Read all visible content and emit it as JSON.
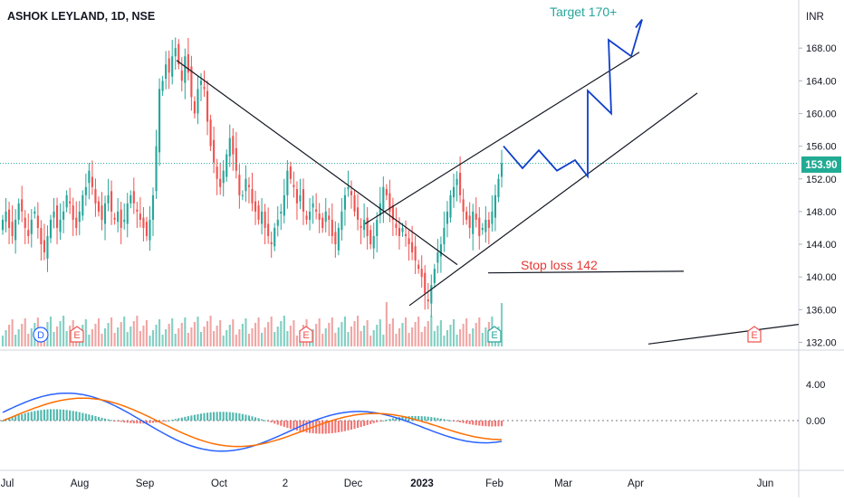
{
  "chart_data": {
    "type": "candlestick",
    "title": "ASHOK LEYLAND, 1D, NSE",
    "currency": "INR",
    "last_price": 153.9,
    "last_price_label": "153.90",
    "price_ylim": [
      131.5,
      173
    ],
    "price_ticks": [
      "168.00",
      "164.00",
      "160.00",
      "156.00",
      "152.00",
      "148.00",
      "144.00",
      "140.00",
      "136.00",
      "132.00"
    ],
    "macd_ylim": [
      -4.5,
      7
    ],
    "macd_ticks": [
      "4.00",
      "0.00"
    ],
    "x_ticks": [
      "Jul",
      "Aug",
      "Sep",
      "Oct",
      "2",
      "Dec",
      "2023",
      "Feb",
      "Mar",
      "Apr",
      "Jun"
    ],
    "annotations": {
      "target": "Target 170+",
      "stop_loss": "Stop loss 142"
    },
    "events": [
      {
        "letter": "D",
        "type": "dividend",
        "date": "Jul"
      },
      {
        "letter": "E",
        "type": "earnings",
        "date": "Aug"
      },
      {
        "letter": "E",
        "type": "earnings",
        "date": "Nov"
      },
      {
        "letter": "E",
        "type": "earnings",
        "date": "Feb"
      },
      {
        "letter": "E",
        "type": "earnings",
        "date": "May"
      }
    ],
    "closes": [
      147,
      148,
      146,
      145,
      147,
      149,
      148,
      146,
      145,
      147,
      148,
      146,
      144,
      143,
      145,
      147,
      148,
      146,
      147,
      148,
      150,
      149,
      147,
      146,
      148,
      150,
      151,
      153,
      151,
      149,
      148,
      147,
      149,
      150,
      148,
      147,
      148,
      146,
      147,
      149,
      150,
      149,
      148,
      147,
      146,
      145,
      147,
      150,
      156,
      163,
      164,
      166,
      165,
      167,
      168,
      166,
      164,
      167,
      165,
      162,
      160,
      163,
      164,
      163,
      159,
      156,
      154,
      152,
      151,
      153,
      155,
      157,
      155,
      153,
      150,
      150,
      152,
      151,
      149,
      148,
      147,
      148,
      146,
      145,
      144,
      146,
      147,
      148,
      150,
      153,
      152,
      151,
      149,
      150,
      148,
      147,
      148,
      149,
      148,
      147,
      146,
      148,
      147,
      145,
      144,
      146,
      148,
      150,
      151,
      150,
      148,
      147,
      146,
      147,
      145,
      144,
      145,
      147,
      149,
      151,
      150,
      148,
      147,
      146,
      145,
      146,
      145,
      144,
      143,
      142,
      141,
      140,
      138,
      137,
      139,
      141,
      143,
      144,
      146,
      148,
      150,
      151,
      152,
      150,
      148,
      147,
      146,
      148,
      147,
      145,
      146,
      147,
      146,
      148,
      150,
      152,
      153.9
    ],
    "volume_color_up": "#82cfc3",
    "volume_color_down": "#f0a6a4",
    "candle_up": "#26a69a",
    "candle_down": "#ef5350",
    "projection_color": "#0f3fc9",
    "macd_line_color": "#2962ff",
    "signal_line_color": "#ff6d00",
    "target_color": "#26a69a",
    "stop_color": "#e53935",
    "price_line_color": "#22ab94"
  }
}
